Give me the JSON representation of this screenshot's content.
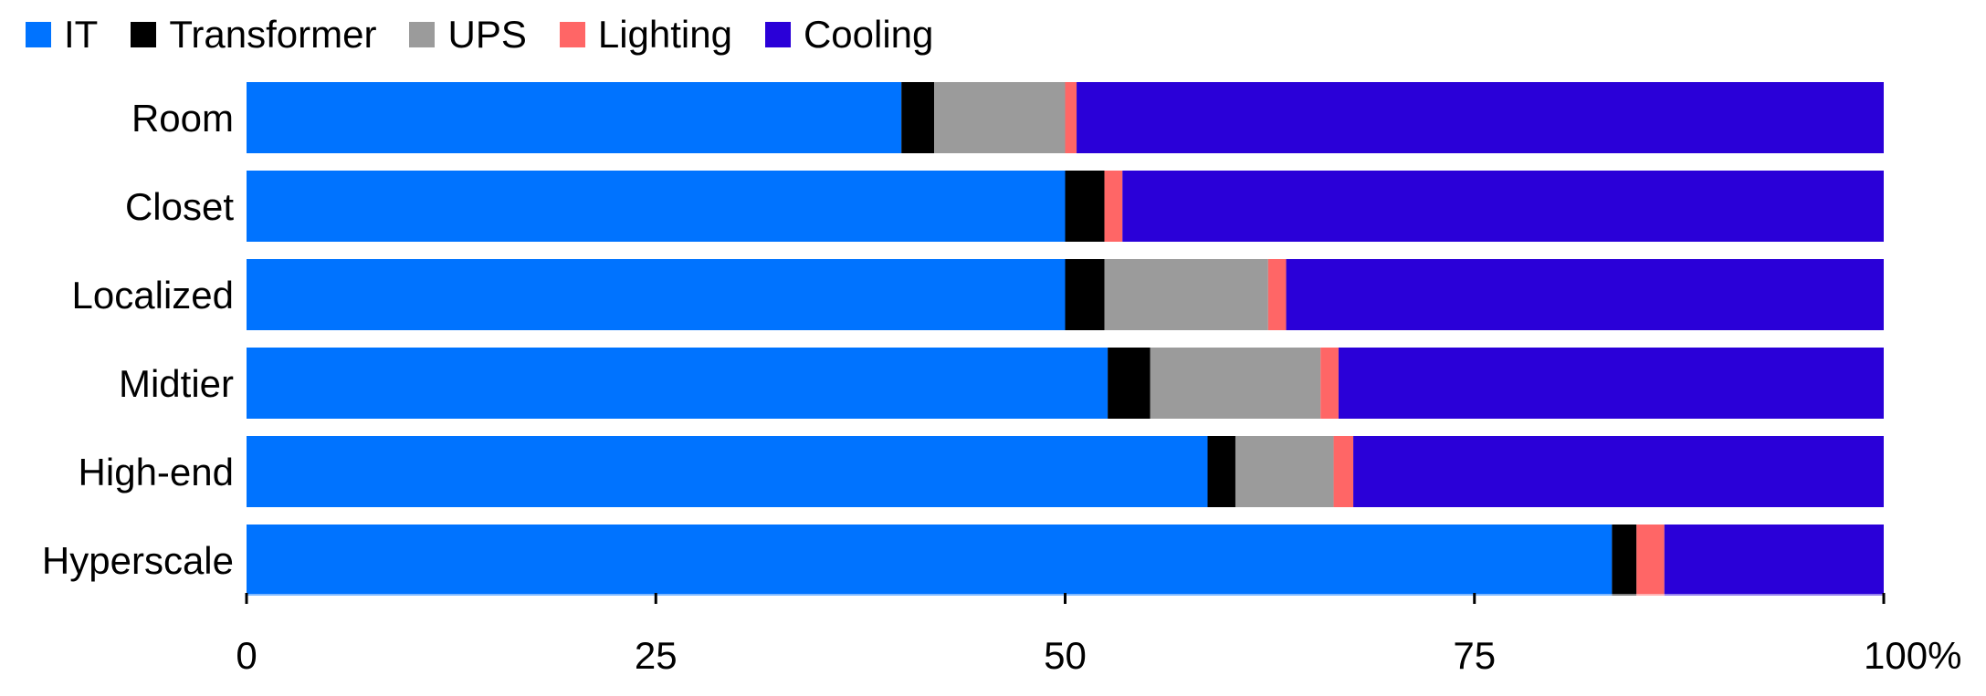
{
  "chart_data": {
    "type": "bar",
    "orientation": "horizontal",
    "stacked": true,
    "categories": [
      "Room",
      "Closet",
      "Localized",
      "Midtier",
      "High-end",
      "Hyperscale"
    ],
    "series": [
      {
        "name": "IT",
        "color": "#0073ff",
        "values": [
          40,
          50,
          50,
          52.6,
          58.7,
          83.4
        ]
      },
      {
        "name": "Transformer",
        "color": "#000000",
        "values": [
          2,
          2.4,
          2.4,
          2.6,
          1.7,
          1.5
        ]
      },
      {
        "name": "UPS",
        "color": "#9b9b9b",
        "values": [
          8,
          0,
          10,
          10.4,
          6,
          0
        ]
      },
      {
        "name": "Lighting",
        "color": "#ff6666",
        "values": [
          0.7,
          1.1,
          1.1,
          1.1,
          1.2,
          1.7
        ]
      },
      {
        "name": "Cooling",
        "color": "#2a00d8",
        "values": [
          49.3,
          46.5,
          36.5,
          33.3,
          32.4,
          13.4
        ]
      }
    ],
    "xlim": [
      0,
      100
    ],
    "xticks": [
      "0",
      "25",
      "50",
      "75",
      "100%"
    ],
    "xtick_values": [
      0,
      25,
      50,
      75,
      100
    ],
    "legend": "top-left",
    "grid": false
  }
}
